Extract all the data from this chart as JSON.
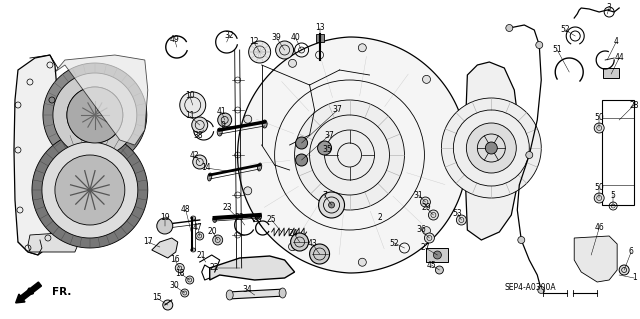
{
  "background_color": "#ffffff",
  "diagram_code": "SEP4-A0300A",
  "direction_label": "FR.",
  "fig_width": 6.4,
  "fig_height": 3.19,
  "dpi": 100,
  "line_color": "#000000",
  "text_color": "#000000",
  "gray_fill": "#888888",
  "dark_fill": "#333333",
  "mid_gray": "#666666"
}
